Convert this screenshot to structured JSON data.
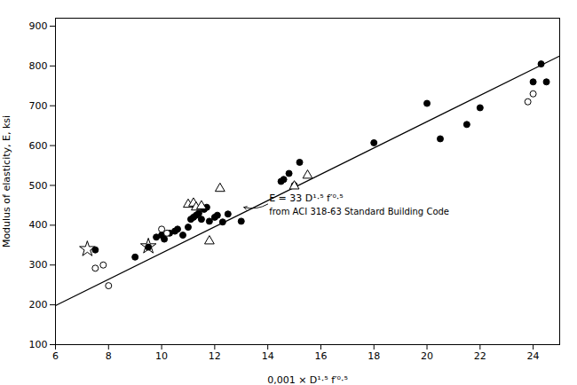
{
  "chart_data": {
    "type": "scatter",
    "xlabel": "0,001 × D¹·⁵ f′⁰·⁵",
    "ylabel": "Modulus of elasticity, E, ksi",
    "xlim": [
      6,
      25
    ],
    "ylim": [
      100,
      920
    ],
    "xticks": [
      6,
      8,
      10,
      12,
      14,
      16,
      18,
      20,
      22,
      24
    ],
    "yticks": [
      100,
      200,
      300,
      400,
      500,
      600,
      700,
      800,
      900
    ],
    "grid": false,
    "series": [
      {
        "type": "line",
        "color": "black",
        "line_style": "solid",
        "x": [
          6,
          25
        ],
        "values": [
          198,
          825
        ]
      },
      {
        "type": "scatter",
        "marker": "circle",
        "color": "black",
        "x": [
          7.5,
          9.0,
          9.5,
          9.8,
          10.0,
          10.1,
          10.3,
          10.5,
          10.6,
          10.8,
          11.0,
          11.1,
          11.2,
          11.3,
          11.4,
          11.5,
          11.6,
          11.7,
          11.8,
          12.0,
          12.1,
          12.3,
          12.5,
          13.0,
          14.5,
          14.6,
          14.8,
          15.0,
          15.2,
          18.0,
          20.0,
          20.5,
          21.5,
          22.0,
          24.0,
          24.3,
          24.5
        ],
        "values": [
          338,
          320,
          345,
          370,
          375,
          365,
          380,
          385,
          390,
          375,
          395,
          415,
          420,
          425,
          430,
          415,
          440,
          445,
          410,
          420,
          425,
          408,
          428,
          410,
          510,
          515,
          530,
          500,
          558,
          607,
          706,
          617,
          653,
          695,
          760,
          805,
          760
        ]
      },
      {
        "type": "scatter",
        "marker": "open_circle",
        "color": "black",
        "x": [
          7.5,
          7.8,
          8.0,
          10.0,
          10.2,
          23.8,
          24.0
        ],
        "values": [
          292,
          300,
          248,
          390,
          380,
          710,
          730
        ]
      },
      {
        "type": "scatter",
        "marker": "open_triangle",
        "color": "black",
        "x": [
          11.0,
          11.2,
          11.3,
          11.5,
          11.8,
          12.2,
          15.0,
          15.5
        ],
        "values": [
          452,
          455,
          445,
          448,
          360,
          492,
          498,
          525
        ]
      },
      {
        "type": "scatter",
        "marker": "star",
        "color": "black",
        "x": [
          7.2,
          9.5
        ],
        "values": [
          340,
          347
        ]
      }
    ],
    "annotations": [
      {
        "text": "E = 33 D¹·⁵ f′⁰·⁵",
        "x": 14.05,
        "y": 460,
        "arrow_from": [
          14.0,
          453
        ],
        "arrow_to": [
          13.1,
          445
        ]
      },
      {
        "text": "from ACI 318-63 Standard Building Code",
        "x": 14.05,
        "y": 443
      }
    ]
  }
}
